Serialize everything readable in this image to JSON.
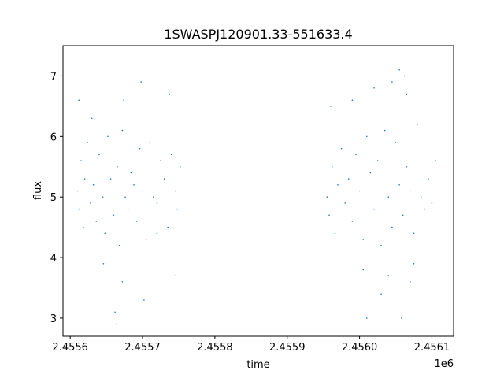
{
  "chart_data": {
    "type": "scatter",
    "title": "1SWASPJ120901.33-551633.4",
    "xlabel": "time",
    "ylabel": "flux",
    "x_offset_label": "1e6",
    "xlim": [
      2455590,
      2456130
    ],
    "ylim": [
      2.7,
      7.5
    ],
    "x_ticks": [
      2455600,
      2455700,
      2455800,
      2455900,
      2456000,
      2456100
    ],
    "x_tick_labels": [
      "2.4556",
      "2.4557",
      "2.4558",
      "2.4559",
      "2.4560",
      "2.4561"
    ],
    "y_ticks": [
      3,
      4,
      5,
      6,
      7
    ],
    "y_tick_labels": [
      "3",
      "4",
      "5",
      "6",
      "7"
    ],
    "grid": false,
    "legend": "none",
    "marker_color": "#1f77b4",
    "series": [
      {
        "x": [
          2455610,
          2455612,
          2455615,
          2455618,
          2455620,
          2455624,
          2455628,
          2455632,
          2455636,
          2455640,
          2455645,
          2455648,
          2455652,
          2455656,
          2455660,
          2455665,
          2455668,
          2455672,
          2455676,
          2455680,
          2455684,
          2455688,
          2455692,
          2455696,
          2455700,
          2455705,
          2455710,
          2455715,
          2455720,
          2455725,
          2455730,
          2455735,
          2455740,
          2455745,
          2455748,
          2455752,
          2455612,
          2455630,
          2455646,
          2455662,
          2455674,
          2455698,
          2455720,
          2455746,
          2455664,
          2455672,
          2455702,
          2455737
        ],
        "y": [
          5.1,
          4.8,
          5.6,
          4.5,
          5.3,
          5.9,
          4.9,
          5.2,
          4.6,
          5.7,
          5.0,
          4.4,
          6.0,
          5.3,
          4.7,
          5.5,
          4.2,
          6.1,
          5.0,
          4.8,
          5.4,
          5.2,
          4.6,
          5.8,
          5.1,
          4.3,
          5.9,
          5.0,
          4.9,
          5.6,
          5.3,
          4.5,
          5.7,
          5.1,
          4.8,
          5.5,
          6.6,
          6.3,
          3.9,
          3.1,
          6.6,
          6.9,
          4.4,
          3.7,
          2.9,
          3.6,
          3.3,
          6.7
        ]
      },
      {
        "x": [
          2455955,
          2455958,
          2455962,
          2455966,
          2455970,
          2455975,
          2455980,
          2455985,
          2455990,
          2455995,
          2456000,
          2456005,
          2456010,
          2456015,
          2456020,
          2456025,
          2456030,
          2456035,
          2456040,
          2456045,
          2456050,
          2456055,
          2456060,
          2456065,
          2456070,
          2456075,
          2456080,
          2456085,
          2456090,
          2456095,
          2456100,
          2456105,
          2455960,
          2455990,
          2456020,
          2456045,
          2456055,
          2456065,
          2456005,
          2456030,
          2456070,
          2456040,
          2456010,
          2456058,
          2456062,
          2456075
        ],
        "y": [
          5.0,
          4.7,
          5.5,
          4.4,
          5.2,
          5.8,
          4.9,
          5.3,
          4.6,
          5.7,
          5.1,
          4.3,
          6.0,
          5.4,
          4.8,
          5.6,
          4.2,
          6.1,
          5.0,
          4.5,
          5.9,
          5.2,
          4.7,
          5.5,
          5.1,
          4.4,
          6.2,
          5.0,
          4.8,
          5.3,
          4.9,
          5.6,
          6.5,
          6.6,
          6.8,
          6.9,
          7.1,
          6.7,
          3.8,
          3.4,
          3.6,
          3.7,
          3.0,
          3.0,
          7.0,
          3.9
        ]
      }
    ]
  }
}
